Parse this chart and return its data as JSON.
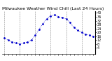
{
  "title": "Milwaukee Weather Wind Chill (Last 24 Hours)",
  "line_color": "#0000cc",
  "background_color": "#ffffff",
  "grid_color": "#888888",
  "x_values": [
    0,
    1,
    2,
    3,
    4,
    5,
    6,
    7,
    8,
    9,
    10,
    11,
    12,
    13,
    14,
    15,
    16,
    17,
    18,
    19,
    20,
    21,
    22,
    23
  ],
  "y_values": [
    14,
    12,
    10,
    9,
    8,
    9,
    10,
    12,
    17,
    23,
    29,
    34,
    37,
    38,
    36,
    35,
    34,
    30,
    25,
    22,
    20,
    18,
    17,
    16
  ],
  "ylim": [
    -2,
    42
  ],
  "yticks": [
    4,
    8,
    12,
    16,
    20,
    24,
    28,
    32,
    36,
    40
  ],
  "xlim": [
    -0.5,
    23.5
  ],
  "grid_x_positions": [
    0,
    4,
    8,
    12,
    16,
    20
  ],
  "xtick_positions": [
    0,
    1,
    2,
    3,
    4,
    5,
    6,
    7,
    8,
    9,
    10,
    11,
    12,
    13,
    14,
    15,
    16,
    17,
    18,
    19,
    20,
    21,
    22,
    23
  ],
  "title_fontsize": 4.5,
  "tick_fontsize": 3.5,
  "marker_size": 1.0,
  "line_width": 0.6,
  "fig_width": 1.6,
  "fig_height": 0.87,
  "dpi": 100
}
